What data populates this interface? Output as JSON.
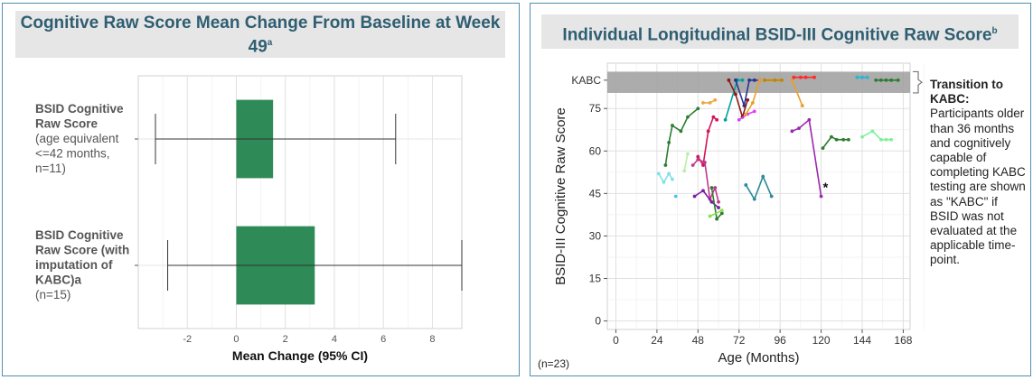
{
  "left": {
    "title": "Cognitive Raw Score Mean Change From Baseline at Week 49",
    "title_sup": "a",
    "chart_data": {
      "type": "bar",
      "orientation": "horizontal",
      "xlabel": "Mean Change (95% CI)",
      "xlim": [
        -4,
        9.2
      ],
      "xticks": [
        -2,
        0,
        2,
        4,
        6,
        8
      ],
      "grid": true,
      "bar_color": "#2e8b57",
      "categories": [
        {
          "lines": [
            {
              "text": "BSID Cognitive",
              "bold": true
            },
            {
              "text": "Raw Score",
              "bold": true
            },
            {
              "text": "(age equivalent",
              "bold": false
            },
            {
              "text": "<=42 months,",
              "bold": false
            },
            {
              "text": "n=11)",
              "bold": false
            }
          ]
        },
        {
          "lines": [
            {
              "text": "BSID Cognitive",
              "bold": true
            },
            {
              "text": "Raw Score (with",
              "bold": true
            },
            {
              "text": "imputation of",
              "bold": true
            },
            {
              "text": "KABC)a",
              "bold": true
            },
            {
              "text": "(n=15)",
              "bold": false
            }
          ]
        }
      ],
      "values": [
        1.5,
        3.2
      ],
      "ci_low": [
        -3.3,
        -2.8
      ],
      "ci_high": [
        6.5,
        9.2
      ]
    }
  },
  "right": {
    "title": "Individual Longitudinal BSID-III Cognitive Raw Score",
    "title_sup": "b",
    "n_label": "(n=23)",
    "note": {
      "heading": "Transition to KABC:",
      "body": "Participants older than 36 months and cognitively capable of completing KABC testing are shown as \"KABC\" if BSID was not evaluated at the applicable time-point."
    },
    "chart_data": {
      "type": "line",
      "xlabel": "Age (Months)",
      "ylabel": "BSID-III Cognitive Raw Score",
      "xlim": [
        -5,
        172
      ],
      "ylim": [
        -3,
        91
      ],
      "xticks": [
        0,
        24,
        48,
        72,
        96,
        120,
        144,
        168
      ],
      "yticks": [
        0,
        15,
        30,
        45,
        60,
        75
      ],
      "kabc_label": "KABC",
      "kabc_value": 85,
      "kabc_band": [
        80.5,
        88
      ],
      "band_color": "#9e9e9e",
      "grid": true,
      "annotations": [
        {
          "text": "*",
          "x": 121,
          "y": 47.5
        }
      ],
      "series": [
        {
          "color": "#7fe0e8",
          "x": [
            25,
            28,
            31,
            33
          ],
          "y": [
            52,
            49,
            52,
            50
          ]
        },
        {
          "color": "#4fc3e8",
          "x": [
            35
          ],
          "y": [
            44
          ]
        },
        {
          "color": "#b8f0a8",
          "x": [
            40,
            42
          ],
          "y": [
            53,
            59
          ]
        },
        {
          "color": "#2e7d32",
          "x": [
            29,
            31,
            33,
            38,
            42,
            48
          ],
          "y": [
            55,
            63,
            69,
            67,
            72,
            75
          ]
        },
        {
          "color": "#f0a63c",
          "x": [
            51,
            55,
            58
          ],
          "y": [
            77,
            77,
            78
          ]
        },
        {
          "color": "#d4145a",
          "x": [
            48,
            51,
            54,
            57,
            59
          ],
          "y": [
            58,
            55,
            67,
            72,
            71
          ]
        },
        {
          "color": "#c0398a",
          "x": [
            45,
            48,
            52,
            55,
            58,
            60
          ],
          "y": [
            55,
            57,
            56,
            43,
            47,
            42
          ]
        },
        {
          "color": "#7b1fa2",
          "x": [
            46,
            51,
            56,
            60
          ],
          "y": [
            44,
            46,
            42,
            40
          ]
        },
        {
          "color": "#2e7d32",
          "x": [
            56,
            59,
            62
          ],
          "y": [
            47,
            36,
            38
          ]
        },
        {
          "color": "#8ae04a",
          "x": [
            55,
            62
          ],
          "y": [
            37,
            39
          ]
        },
        {
          "color": "#00a0a0",
          "x": [
            64,
            71,
            74
          ],
          "y": [
            71,
            85,
            85
          ]
        },
        {
          "color": "#283593",
          "x": [
            70,
            75,
            78,
            81,
            84
          ],
          "y": [
            85,
            76,
            85,
            85,
            85
          ]
        },
        {
          "color": "#8b1a1a",
          "x": [
            66,
            70,
            74,
            77
          ],
          "y": [
            85,
            80,
            72,
            78
          ]
        },
        {
          "color": "#e040fb",
          "x": [
            72,
            77,
            81
          ],
          "y": [
            71,
            73,
            74
          ]
        },
        {
          "color": "#e8a02c",
          "x": [
            76,
            80,
            84,
            87,
            90,
            96
          ],
          "y": [
            73,
            77,
            85,
            85,
            85,
            85
          ]
        },
        {
          "color": "#2e8b99",
          "x": [
            76,
            81,
            86,
            91
          ],
          "y": [
            48,
            43,
            51,
            44
          ]
        },
        {
          "color": "#b8860b",
          "x": [
            87,
            93,
            97
          ],
          "y": [
            85,
            85,
            85
          ]
        },
        {
          "color": "#e8a02c",
          "x": [
            103,
            109
          ],
          "y": [
            85,
            76
          ]
        },
        {
          "color": "#ff2a2a",
          "x": [
            104,
            108,
            111,
            116
          ],
          "y": [
            86,
            86,
            86,
            86
          ]
        },
        {
          "color": "#9c27b0",
          "x": [
            103,
            107,
            113,
            120
          ],
          "y": [
            67,
            68,
            71,
            44
          ]
        },
        {
          "color": "#2e7d32",
          "x": [
            121,
            126,
            129,
            133,
            136
          ],
          "y": [
            61,
            65,
            64,
            64,
            64
          ]
        },
        {
          "color": "#7ef09a",
          "x": [
            144,
            150,
            155,
            158,
            161
          ],
          "y": [
            65,
            67,
            64,
            64,
            64
          ]
        },
        {
          "color": "#29b6d4",
          "x": [
            141,
            144,
            147
          ],
          "y": [
            86,
            86,
            86
          ]
        },
        {
          "color": "#2e7d32",
          "x": [
            152,
            155,
            158,
            161,
            165
          ],
          "y": [
            85,
            85,
            85,
            85,
            85
          ]
        }
      ]
    }
  }
}
